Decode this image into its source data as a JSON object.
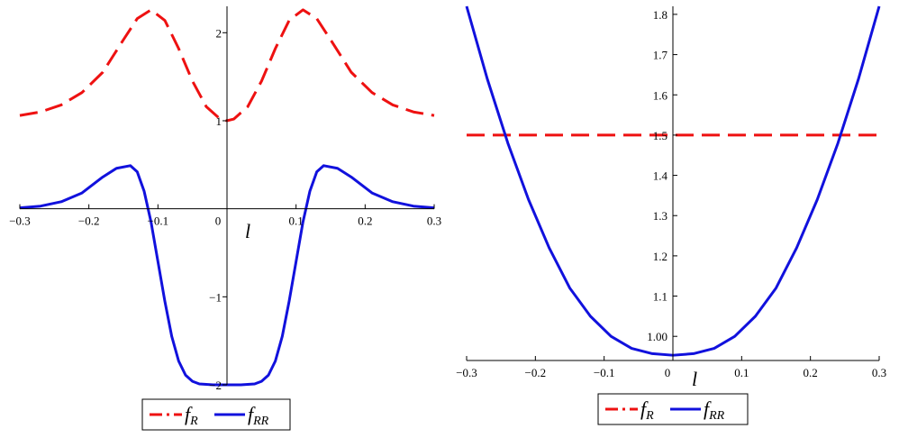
{
  "chart_data": [
    {
      "type": "line",
      "xlabel": "l",
      "ylabel": "",
      "xlim": [
        -0.3,
        0.3
      ],
      "ylim": [
        -2,
        2.3
      ],
      "x_ticks": [
        -0.3,
        -0.2,
        -0.1,
        0,
        0.1,
        0.2,
        0.3
      ],
      "x_tick_labels": [
        "−0.3",
        "−0.2",
        "−0.1",
        "0",
        "0.1",
        "0.2",
        "0.3"
      ],
      "y_ticks": [
        -2,
        -1,
        1,
        2
      ],
      "y_tick_labels": [
        "−2",
        "−1",
        "1",
        "2"
      ],
      "legend_position": "bottom",
      "series": [
        {
          "name": "f_R",
          "color": "#ee1111",
          "style": "dashed",
          "x": [
            -0.3,
            -0.27,
            -0.24,
            -0.21,
            -0.18,
            -0.15,
            -0.13,
            -0.11,
            -0.09,
            -0.07,
            -0.05,
            -0.03,
            -0.01,
            0,
            0.01,
            0.03,
            0.05,
            0.07,
            0.09,
            0.11,
            0.13,
            0.15,
            0.18,
            0.21,
            0.24,
            0.27,
            0.3
          ],
          "y": [
            1.06,
            1.1,
            1.18,
            1.32,
            1.55,
            1.92,
            2.16,
            2.26,
            2.14,
            1.82,
            1.45,
            1.16,
            1.02,
            1.0,
            1.02,
            1.16,
            1.45,
            1.82,
            2.14,
            2.26,
            2.16,
            1.92,
            1.55,
            1.32,
            1.18,
            1.1,
            1.06
          ]
        },
        {
          "name": "f_RR",
          "color": "#1111dd",
          "style": "solid",
          "x": [
            -0.3,
            -0.27,
            -0.24,
            -0.21,
            -0.18,
            -0.16,
            -0.14,
            -0.13,
            -0.12,
            -0.11,
            -0.1,
            -0.09,
            -0.08,
            -0.07,
            -0.06,
            -0.05,
            -0.04,
            -0.02,
            0,
            0.02,
            0.04,
            0.05,
            0.06,
            0.07,
            0.08,
            0.09,
            0.1,
            0.11,
            0.12,
            0.13,
            0.14,
            0.16,
            0.18,
            0.21,
            0.24,
            0.27,
            0.3
          ],
          "y": [
            0.01,
            0.03,
            0.08,
            0.18,
            0.36,
            0.46,
            0.49,
            0.42,
            0.2,
            -0.15,
            -0.6,
            -1.05,
            -1.45,
            -1.73,
            -1.89,
            -1.96,
            -1.99,
            -2.0,
            -2.0,
            -2.0,
            -1.99,
            -1.96,
            -1.89,
            -1.73,
            -1.45,
            -1.05,
            -0.6,
            -0.15,
            0.2,
            0.42,
            0.49,
            0.46,
            0.36,
            0.18,
            0.08,
            0.03,
            0.01
          ]
        }
      ]
    },
    {
      "type": "line",
      "xlabel": "l",
      "ylabel": "",
      "xlim": [
        -0.3,
        0.3
      ],
      "ylim": [
        0.94,
        1.82
      ],
      "x_ticks": [
        -0.3,
        -0.2,
        -0.1,
        0,
        0.1,
        0.2,
        0.3
      ],
      "x_tick_labels": [
        "−0.3",
        "−0.2",
        "−0.1",
        "0",
        "0.1",
        "0.2",
        "0.3"
      ],
      "y_ticks": [
        1.0,
        1.1,
        1.2,
        1.3,
        1.4,
        1.5,
        1.6,
        1.7,
        1.8
      ],
      "y_tick_labels": [
        "1.00",
        "1.1",
        "1.2",
        "1.3",
        "1.4",
        "1.5",
        "1.6",
        "1.7",
        "1.8"
      ],
      "legend_position": "bottom",
      "series": [
        {
          "name": "f_R",
          "color": "#ee1111",
          "style": "dashed",
          "x": [
            -0.3,
            0.3
          ],
          "y": [
            1.5,
            1.5
          ]
        },
        {
          "name": "f_RR",
          "color": "#1111dd",
          "style": "solid",
          "x": [
            -0.3,
            -0.27,
            -0.24,
            -0.21,
            -0.18,
            -0.15,
            -0.12,
            -0.09,
            -0.06,
            -0.03,
            0,
            0.03,
            0.06,
            0.09,
            0.12,
            0.15,
            0.18,
            0.21,
            0.24,
            0.27,
            0.3
          ],
          "y": [
            1.82,
            1.64,
            1.48,
            1.34,
            1.22,
            1.12,
            1.05,
            1.0,
            0.97,
            0.957,
            0.953,
            0.957,
            0.97,
            1.0,
            1.05,
            1.12,
            1.22,
            1.34,
            1.48,
            1.64,
            1.82
          ]
        }
      ]
    }
  ],
  "legends": [
    {
      "items": [
        {
          "base": "f",
          "sub": "R"
        },
        {
          "base": "f",
          "sub": "RR"
        }
      ]
    },
    {
      "items": [
        {
          "base": "f",
          "sub": "R"
        },
        {
          "base": "f",
          "sub": "RR"
        }
      ]
    }
  ]
}
